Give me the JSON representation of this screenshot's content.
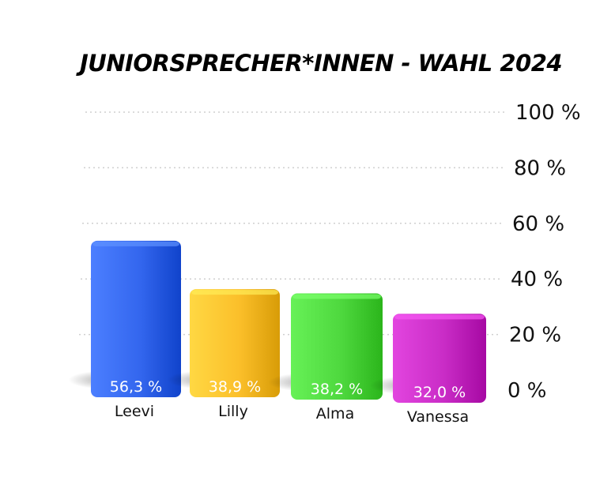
{
  "chart_data": {
    "type": "bar",
    "title": "JUNIORSPRECHER*INNEN - WAHL 2024",
    "xlabel": "",
    "ylabel": "",
    "categories": [
      "Leevi",
      "Lilly",
      "Alma",
      "Vanessa"
    ],
    "values": [
      56.3,
      38.9,
      38.2,
      32.0
    ],
    "value_labels": [
      "56,3 %",
      "38,9 %",
      "38,2 %",
      "32,0 %"
    ],
    "colors": [
      "#3366ee",
      "#fbbf2a",
      "#4ed83e",
      "#c92cc6"
    ],
    "ylim": [
      0,
      100
    ],
    "yticks": [
      0,
      20,
      40,
      60,
      80,
      100
    ],
    "ytick_labels": [
      "0 %",
      "20 %",
      "40 %",
      "60 %",
      "80 %",
      "100 %"
    ],
    "grid": true,
    "y_axis_position": "right"
  }
}
